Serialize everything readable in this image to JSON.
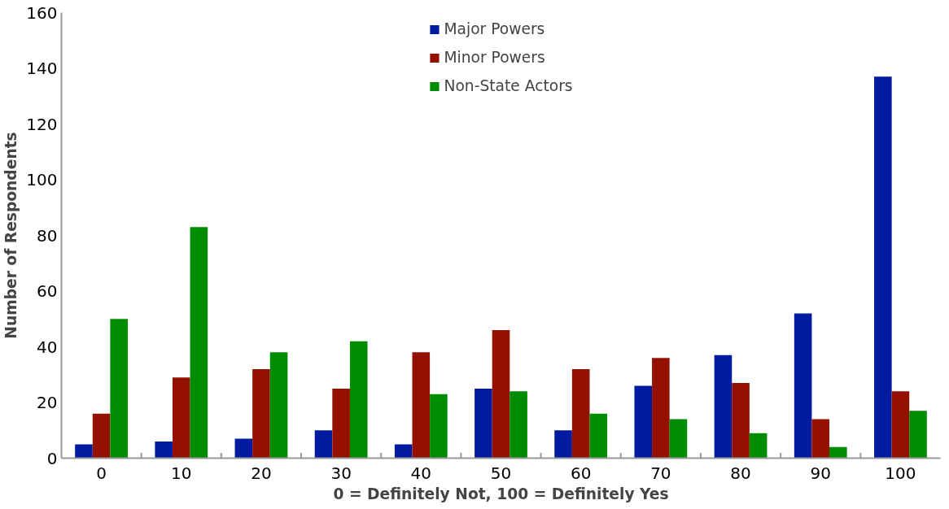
{
  "chart_data": {
    "type": "bar",
    "xlabel": "0 = Definitely Not, 100 = Definitely Yes",
    "ylabel": "Number of Respondents",
    "categories": [
      "0",
      "10",
      "20",
      "30",
      "40",
      "50",
      "60",
      "70",
      "80",
      "90",
      "100"
    ],
    "series": [
      {
        "name": "Major Powers",
        "color": "#001ba0",
        "values": [
          5,
          6,
          7,
          10,
          5,
          25,
          10,
          26,
          37,
          52,
          137
        ]
      },
      {
        "name": "Minor Powers",
        "color": "#941100",
        "values": [
          16,
          29,
          32,
          25,
          38,
          46,
          32,
          36,
          27,
          14,
          24
        ]
      },
      {
        "name": "Non-State Actors",
        "color": "#008c00",
        "values": [
          50,
          83,
          38,
          42,
          23,
          24,
          16,
          14,
          9,
          4,
          17
        ]
      }
    ],
    "ylim": [
      0,
      160
    ],
    "yticks": [
      0,
      20,
      40,
      60,
      80,
      100,
      120,
      140,
      160
    ],
    "grid": false,
    "legend": "top"
  }
}
